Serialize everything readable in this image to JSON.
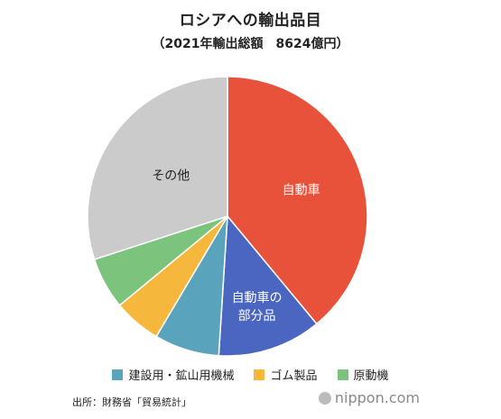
{
  "header": {
    "title": "ロシアへの輸出品目",
    "subtitle": "（2021年輸出総額　8624億円）"
  },
  "chart_data": {
    "type": "pie",
    "title": "ロシアへの輸出品目",
    "subtitle": "（2021年輸出総額　8624億円）",
    "slices": [
      {
        "label": "自動車",
        "value": 39.0,
        "color": "#e8523a",
        "label_color": "#ffffff",
        "show_label": true
      },
      {
        "label": "自動車の部分品",
        "value": 12.0,
        "color": "#4a66c0",
        "label_color": "#ffffff",
        "show_label": true,
        "label_lines": [
          "自動車の",
          "部分品"
        ]
      },
      {
        "label": "建設用・鉱山用機械",
        "value": 7.5,
        "color": "#5aa3bd",
        "label_color": "#ffffff",
        "show_label": false
      },
      {
        "label": "ゴム製品",
        "value": 5.5,
        "color": "#f5b83d",
        "label_color": "#ffffff",
        "show_label": false
      },
      {
        "label": "原動機",
        "value": 6.0,
        "color": "#7cc47e",
        "label_color": "#ffffff",
        "show_label": false
      },
      {
        "label": "その他",
        "value": 30.0,
        "color": "#cbcbcb",
        "label_color": "#222222",
        "show_label": true
      }
    ],
    "legend": [
      "建設用・鉱山用機械",
      "ゴム製品",
      "原動機"
    ],
    "legend_placement": "bottom"
  },
  "legend": {
    "items": [
      {
        "label": "建設用・鉱山用機械",
        "color": "#5aa3bd"
      },
      {
        "label": "ゴム製品",
        "color": "#f5b83d"
      },
      {
        "label": "原動機",
        "color": "#7cc47e"
      }
    ]
  },
  "footer": {
    "source": "出所：財務省「貿易統計」",
    "logo": "nippon.com"
  }
}
